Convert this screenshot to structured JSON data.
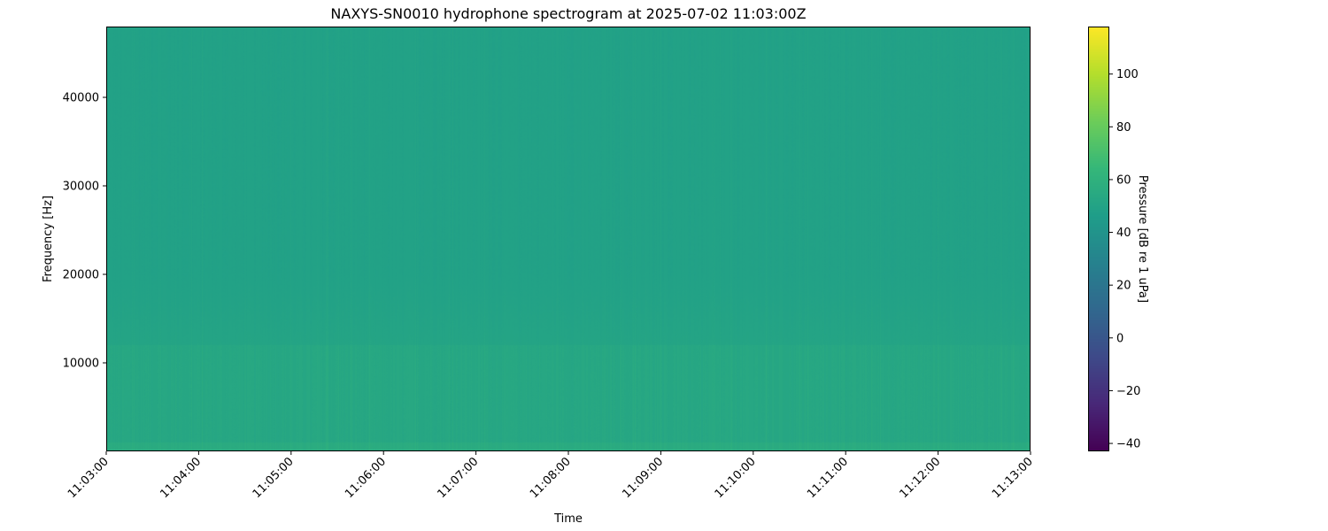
{
  "chart_data": {
    "type": "heatmap",
    "title": "NAXYS-SN0010 hydrophone spectrogram at 2025-07-02 11:03:00Z",
    "xlabel": "Time",
    "ylabel": "Frequency [Hz]",
    "x_ticks": [
      "11:03:00",
      "11:04:00",
      "11:05:00",
      "11:06:00",
      "11:07:00",
      "11:08:00",
      "11:09:00",
      "11:10:00",
      "11:11:00",
      "11:12:00",
      "11:13:00"
    ],
    "xlim": [
      "11:03:00",
      "11:13:00"
    ],
    "y_ticks": [
      10000,
      20000,
      30000,
      40000
    ],
    "ylim": [
      0,
      48000
    ],
    "colormap": "viridis",
    "colorbar": {
      "label": "Pressure [dB re 1 uPa]",
      "ticks": [
        -40,
        -20,
        0,
        20,
        40,
        60,
        80,
        100
      ],
      "range": [
        -43,
        118
      ]
    },
    "approx_levels_db": {
      "0-1000 Hz": 56,
      "1000-12000 Hz": 53,
      "12000-48000 Hz": 49
    }
  }
}
